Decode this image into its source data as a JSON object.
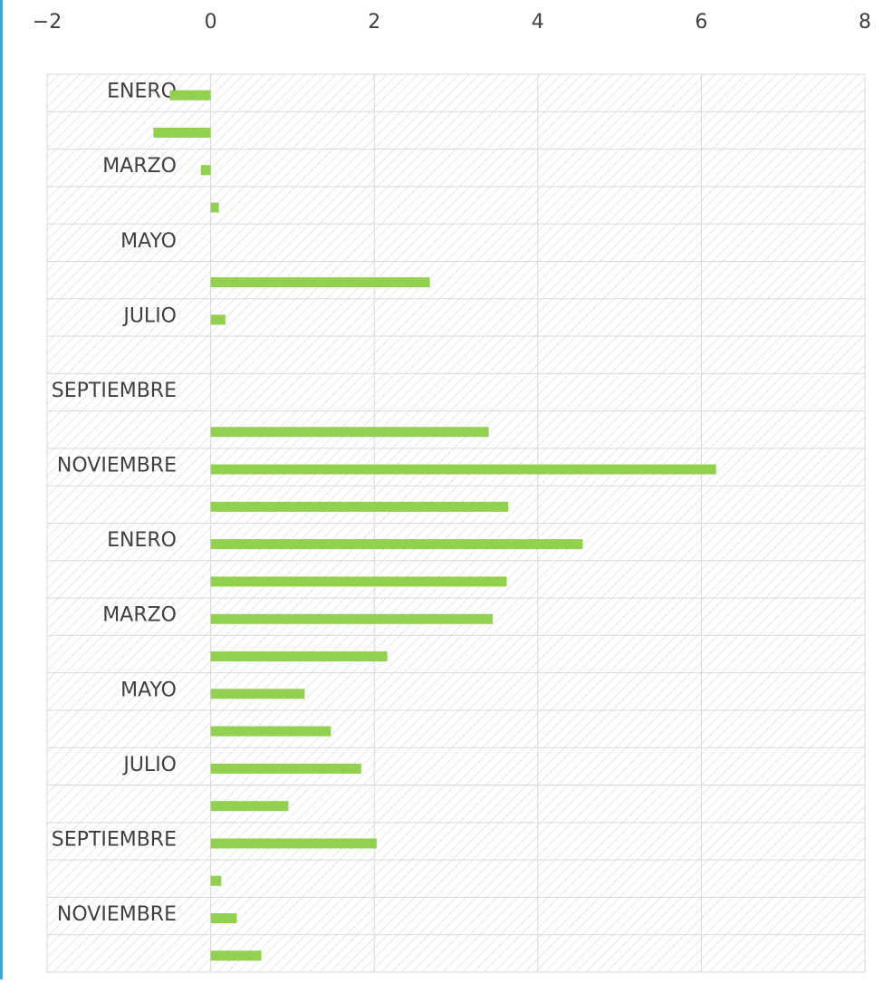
{
  "chart_data": {
    "type": "barh",
    "categories": [
      "ENERO",
      null,
      "MARZO",
      null,
      "MAYO",
      null,
      "JULIO",
      null,
      "SEPTIEMBRE",
      null,
      "NOVIEMBRE",
      null,
      "ENERO",
      null,
      "MARZO",
      null,
      "MAYO",
      null,
      "JULIO",
      null,
      "SEPTIEMBRE",
      null,
      "NOVIEMBRE",
      null
    ],
    "values": [
      -0.5,
      -0.7,
      -0.12,
      0.1,
      0,
      2.68,
      0.18,
      0,
      0,
      3.4,
      6.18,
      3.64,
      4.55,
      3.62,
      3.45,
      2.16,
      1.15,
      1.47,
      1.84,
      0.95,
      2.03,
      0.13,
      0.32,
      0.62
    ],
    "color": "#92d050",
    "xlim": [
      -2,
      8
    ],
    "xticks": [
      {
        "value": -2,
        "label": "−2"
      },
      0,
      2,
      4,
      6,
      8
    ],
    "grid": true
  }
}
